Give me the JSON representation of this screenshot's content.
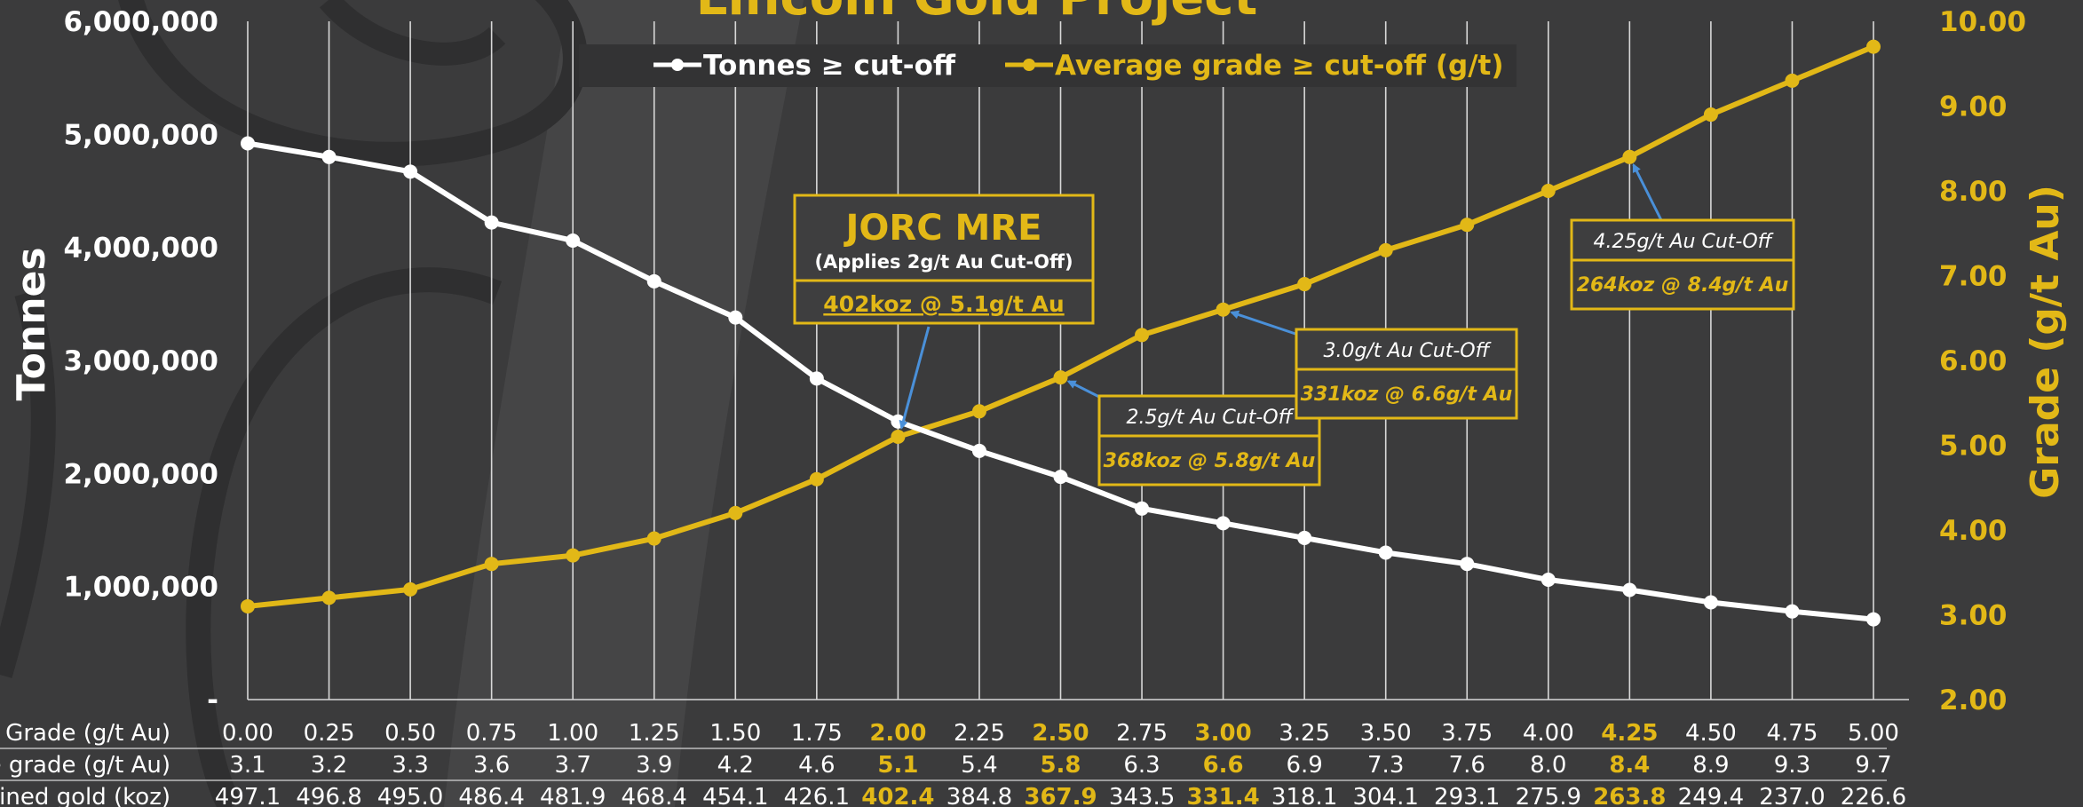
{
  "chart_data": {
    "type": "line",
    "title": "Lincoln Gold Project",
    "ylabel_left": "Tonnes",
    "ylabel_right": "Grade (g/t Au)",
    "ylim_left": [
      0,
      6000000
    ],
    "ylim_right": [
      2.0,
      10.0
    ],
    "grid": true,
    "legend_placement": "top-center",
    "yticks_left": [
      "-",
      "1,000,000",
      "2,000,000",
      "3,000,000",
      "4,000,000",
      "5,000,000",
      "6,000,000"
    ],
    "yticks_right": [
      "2.00",
      "3.00",
      "4.00",
      "5.00",
      "6.00",
      "7.00",
      "8.00",
      "9.00",
      "10.00"
    ],
    "x": [
      0.0,
      0.25,
      0.5,
      0.75,
      1.0,
      1.25,
      1.5,
      1.75,
      2.0,
      2.25,
      2.5,
      2.75,
      3.0,
      3.25,
      3.5,
      3.75,
      4.0,
      4.25,
      4.5,
      4.75,
      5.0
    ],
    "series": [
      {
        "name": "Tonnes ≥ cut-off",
        "axis": "left",
        "color": "#ffffff",
        "values": [
          4920000,
          4800000,
          4670000,
          4220000,
          4060000,
          3700000,
          3380000,
          2840000,
          2460000,
          2200000,
          1970000,
          1690000,
          1560000,
          1430000,
          1300000,
          1200000,
          1060000,
          970000,
          860000,
          780000,
          710000
        ]
      },
      {
        "name": "Average grade ≥ cut-off (g/t)",
        "axis": "right",
        "color": "#e2b817",
        "values": [
          3.1,
          3.2,
          3.3,
          3.6,
          3.7,
          3.9,
          4.2,
          4.6,
          5.1,
          5.4,
          5.8,
          6.3,
          6.6,
          6.9,
          7.3,
          7.6,
          8.0,
          8.4,
          8.9,
          9.3,
          9.7
        ]
      }
    ],
    "table": {
      "rows": [
        {
          "label": "Cut-Off Grade (g/t Au)",
          "values": [
            "0.00",
            "0.25",
            "0.50",
            "0.75",
            "1.00",
            "1.25",
            "1.50",
            "1.75",
            "2.00",
            "2.25",
            "2.50",
            "2.75",
            "3.00",
            "3.25",
            "3.50",
            "3.75",
            "4.00",
            "4.25",
            "4.50",
            "4.75",
            "5.00"
          ]
        },
        {
          "label": "Average grade (g/t Au)",
          "values": [
            "3.1",
            "3.2",
            "3.3",
            "3.6",
            "3.7",
            "3.9",
            "4.2",
            "4.6",
            "5.1",
            "5.4",
            "5.8",
            "6.3",
            "6.6",
            "6.9",
            "7.3",
            "7.6",
            "8.0",
            "8.4",
            "8.9",
            "9.3",
            "9.7"
          ]
        },
        {
          "label": "Contained gold (koz)",
          "values": [
            "497.1",
            "496.8",
            "495.0",
            "486.4",
            "481.9",
            "468.4",
            "454.1",
            "426.1",
            "402.4",
            "384.8",
            "367.9",
            "343.5",
            "331.4",
            "318.1",
            "304.1",
            "293.1",
            "275.9",
            "263.8",
            "249.4",
            "237.0",
            "226.6"
          ]
        }
      ],
      "highlight_indices": [
        8,
        10,
        12,
        17
      ]
    },
    "annotations": [
      {
        "id": "jorc",
        "heading": "JORC MRE",
        "subheading": "(Applies 2g/t Au Cut-Off)",
        "value": "402koz @ 5.1g/t Au",
        "point_index": 8
      },
      {
        "id": "cut25",
        "label": "2.5g/t Au Cut-Off",
        "value": "368koz @ 5.8g/t Au",
        "point_index": 10
      },
      {
        "id": "cut30",
        "label": "3.0g/t Au Cut-Off",
        "value": "331koz @ 6.6g/t Au",
        "point_index": 12
      },
      {
        "id": "cut425",
        "label": "4.25g/t Au Cut-Off",
        "value": "264koz @ 8.4g/t Au",
        "point_index": 17
      }
    ],
    "colors": {
      "background": "#3b3b3c",
      "accent": "#e2b817",
      "arrow": "#4a90d9",
      "box_fill": "#3e3e3f",
      "legend_bg": "#333334"
    }
  }
}
